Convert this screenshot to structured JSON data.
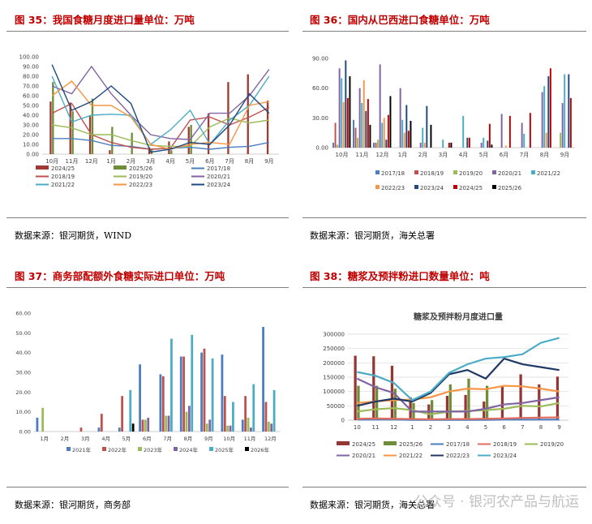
{
  "panels": [
    {
      "title": "图 35：我国食糖月度进口量单位：万吨",
      "source": "数据来源：银河期货，WIND"
    },
    {
      "title": "图 36：国内从巴西进口食糖单位：万吨",
      "source": "数据来源：银河期货，海关总署"
    },
    {
      "title": "图 37：商务部配额外食糖实际进口单位：万吨",
      "source": "数据来源：银河期货，商务部"
    },
    {
      "title": "图 38：糖浆及预拌粉进口数量单位：吨",
      "source": "数据来源：银河期货，海关总署"
    }
  ],
  "watermark": "公众号 · 银河农产品与航运",
  "chart_data": [
    {
      "type": "bar",
      "categories": [
        "10月",
        "11月",
        "12月",
        "1月",
        "2月",
        "3月",
        "4月",
        "5月",
        "6月",
        "7月",
        "8月",
        "9月"
      ],
      "ylim": [
        0,
        100
      ],
      "yticks": [
        "0.00",
        "10.00",
        "20.00",
        "30.00",
        "40.00",
        "50.00",
        "60.00",
        "70.00",
        "80.00",
        "90.00",
        "100.00"
      ],
      "series": [
        {
          "name": "2024/25",
          "kind": "bar",
          "color": "#9e3a32",
          "values": [
            54,
            53,
            39,
            4,
            0,
            7,
            13,
            28,
            42,
            74,
            82,
            55
          ]
        },
        {
          "name": "2025/26",
          "kind": "bar",
          "color": "#6e8d37",
          "values": [
            74,
            44,
            57,
            28,
            22,
            5,
            4,
            30,
            null,
            null,
            null,
            null
          ]
        },
        {
          "name": "2017/18",
          "kind": "line",
          "color": "#4a7ec0",
          "values": [
            16,
            16,
            14,
            9,
            8,
            5,
            6,
            7,
            5,
            7,
            8,
            12
          ]
        },
        {
          "name": "2018/19",
          "kind": "line",
          "color": "#c0504d",
          "values": [
            42,
            52,
            20,
            12,
            7,
            5,
            6,
            35,
            38,
            30,
            38,
            48
          ]
        },
        {
          "name": "2019/20",
          "kind": "line",
          "color": "#9bbb59",
          "values": [
            30,
            27,
            20,
            20,
            14,
            9,
            8,
            8,
            28,
            37,
            32,
            35
          ]
        },
        {
          "name": "2020/21",
          "kind": "line",
          "color": "#8064a2",
          "values": [
            70,
            62,
            90,
            62,
            40,
            20,
            16,
            15,
            42,
            42,
            60,
            87
          ]
        },
        {
          "name": "2021/22",
          "kind": "line",
          "color": "#4bacc6",
          "values": [
            80,
            33,
            40,
            41,
            40,
            10,
            25,
            45,
            10,
            35,
            50,
            80
          ]
        },
        {
          "name": "2022/23",
          "kind": "line",
          "color": "#f79646",
          "values": [
            60,
            75,
            50,
            50,
            38,
            10,
            5,
            10,
            12,
            10,
            50,
            54
          ]
        },
        {
          "name": "2023/24",
          "kind": "line",
          "color": "#1f497d",
          "values": [
            92,
            45,
            54,
            70,
            52,
            2,
            5,
            12,
            10,
            30,
            62,
            42
          ]
        }
      ]
    },
    {
      "type": "bar",
      "categories": [
        "10月",
        "11月",
        "12月",
        "1月",
        "2月",
        "3月",
        "4月",
        "5月",
        "6月",
        "7月",
        "8月",
        "9月"
      ],
      "ylim": [
        0,
        90
      ],
      "yticks": [
        "0.00",
        "30.00",
        "60.00",
        "90.00"
      ],
      "series": [
        {
          "name": "2017/18",
          "color": "#4a7ec0",
          "values": [
            5,
            28,
            5,
            0,
            0,
            0,
            0,
            0,
            0,
            0,
            0,
            0
          ]
        },
        {
          "name": "2018/19",
          "color": "#c0504d",
          "values": [
            25,
            20,
            5,
            0,
            0,
            0,
            0,
            0,
            0,
            0,
            0,
            0
          ]
        },
        {
          "name": "2019/20",
          "color": "#9bbb59",
          "values": [
            3,
            10,
            8,
            0,
            0,
            0,
            0,
            0,
            0,
            0,
            0,
            15
          ]
        },
        {
          "name": "2020/21",
          "color": "#8064a2",
          "values": [
            80,
            60,
            84,
            60,
            5,
            0,
            0,
            5,
            34,
            25,
            56,
            45
          ]
        },
        {
          "name": "2021/22",
          "color": "#4bacc6",
          "values": [
            70,
            45,
            25,
            28,
            20,
            8,
            32,
            10,
            0,
            14,
            62,
            74
          ]
        },
        {
          "name": "2022/23",
          "color": "#f79646",
          "values": [
            46,
            68,
            30,
            15,
            5,
            0,
            0,
            0,
            2,
            0,
            15,
            0
          ]
        },
        {
          "name": "2023/24",
          "color": "#1f497d",
          "values": [
            88,
            37,
            8,
            43,
            42,
            0,
            10,
            7,
            0,
            0,
            72,
            74
          ]
        },
        {
          "name": "2024/25",
          "color": "#c00000",
          "values": [
            50,
            49,
            33,
            17,
            0,
            5,
            10,
            24,
            32,
            35,
            80,
            50
          ]
        },
        {
          "name": "2025/26",
          "color": "#000000",
          "values": [
            72,
            23,
            52,
            27,
            23,
            5,
            0,
            3,
            0,
            0,
            0,
            0
          ]
        }
      ]
    },
    {
      "type": "bar",
      "categories": [
        "1月",
        "2月",
        "3月",
        "4月",
        "5月",
        "6月",
        "7月",
        "8月",
        "9月",
        "10月",
        "11月",
        "12月"
      ],
      "ylim": [
        0,
        60
      ],
      "yticks": [
        "0.00",
        "10.00",
        "20.00",
        "30.00",
        "40.00",
        "50.00",
        "60.00"
      ],
      "series": [
        {
          "name": "2021年",
          "color": "#4a7ec0",
          "values": [
            7,
            0,
            0,
            2,
            2,
            34,
            29,
            38,
            40,
            39,
            6,
            53
          ]
        },
        {
          "name": "2022年",
          "color": "#c0504d",
          "values": [
            0,
            0,
            2,
            9,
            18,
            6,
            28,
            38,
            42,
            18,
            18,
            15
          ]
        },
        {
          "name": "2023年",
          "color": "#9bbb59",
          "values": [
            12,
            0,
            0,
            0,
            0,
            6,
            8,
            10,
            4,
            3,
            7,
            5
          ]
        },
        {
          "name": "2024年",
          "color": "#8064a2",
          "values": [
            0,
            0,
            0,
            0,
            0,
            7,
            8,
            13,
            6,
            3,
            2,
            4
          ]
        },
        {
          "name": "2025年",
          "color": "#4bacc6",
          "values": [
            0,
            0,
            0,
            0,
            21,
            0,
            47,
            49,
            37,
            15,
            24,
            21
          ]
        },
        {
          "name": "2026年",
          "color": "#000000",
          "values": [
            0,
            0,
            0,
            0,
            4,
            0,
            0,
            0,
            0,
            0,
            0,
            0
          ]
        }
      ]
    },
    {
      "type": "bar",
      "title": "糖浆及预拌粉月度进口量",
      "categories": [
        "10",
        "11",
        "12",
        "1",
        "2",
        "3",
        "4",
        "5",
        "6",
        "7",
        "8",
        "9"
      ],
      "ylim": [
        0,
        300000
      ],
      "yticks": [
        "0",
        "50000",
        "100000",
        "150000",
        "200000",
        "250000",
        "300000"
      ],
      "series": [
        {
          "name": "2024/25",
          "kind": "bar",
          "color": "#943634",
          "values": [
            225000,
            223000,
            190000,
            80000,
            55000,
            85000,
            88000,
            65000,
            118000,
            160000,
            125000,
            152000
          ]
        },
        {
          "name": "2025/26",
          "kind": "bar",
          "color": "#6e8d37",
          "values": [
            120000,
            120000,
            110000,
            60000,
            70000,
            125000,
            145000,
            120000,
            null,
            null,
            null,
            null
          ]
        },
        {
          "name": "2017/18",
          "kind": "line",
          "color": "#4a7ec0",
          "values": [
            2000,
            2000,
            2000,
            1000,
            1000,
            1000,
            1000,
            1000,
            2000,
            2000,
            2000,
            2000
          ]
        },
        {
          "name": "2018/19",
          "kind": "line",
          "color": "#e36c5d",
          "values": [
            5000,
            6000,
            5000,
            4000,
            3000,
            4000,
            4000,
            5000,
            6000,
            8000,
            9000,
            10000
          ]
        },
        {
          "name": "2019/20",
          "kind": "line",
          "color": "#9bbb59",
          "values": [
            30000,
            38000,
            42000,
            35000,
            20000,
            30000,
            32000,
            35000,
            40000,
            50000,
            48000,
            60000
          ]
        },
        {
          "name": "2020/21",
          "kind": "line",
          "color": "#8064a2",
          "values": [
            145000,
            115000,
            95000,
            30000,
            30000,
            30000,
            30000,
            40000,
            55000,
            60000,
            70000,
            80000
          ]
        },
        {
          "name": "2021/22",
          "kind": "line",
          "color": "#f79646",
          "values": [
            60000,
            65000,
            70000,
            72000,
            80000,
            100000,
            110000,
            108000,
            120000,
            118000,
            110000,
            100000
          ]
        },
        {
          "name": "2022/23",
          "kind": "line",
          "color": "#1f3864",
          "values": [
            50000,
            65000,
            75000,
            65000,
            95000,
            160000,
            175000,
            145000,
            215000,
            195000,
            185000,
            175000
          ]
        },
        {
          "name": "2023/24",
          "kind": "line",
          "color": "#4bacc6",
          "values": [
            168000,
            155000,
            130000,
            70000,
            100000,
            165000,
            195000,
            215000,
            220000,
            230000,
            270000,
            287000
          ]
        }
      ]
    }
  ]
}
